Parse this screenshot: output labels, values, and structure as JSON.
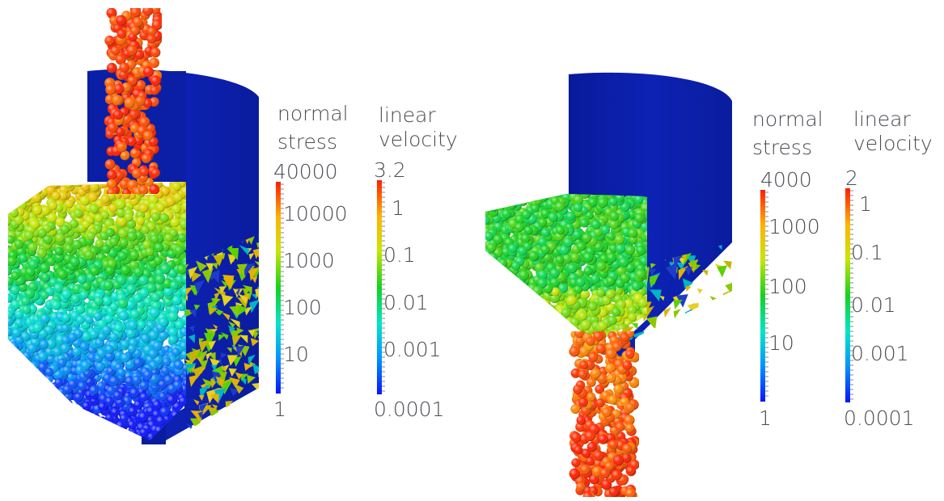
{
  "panels": [
    {
      "id": "left",
      "colorbars": [
        {
          "title_line1": "normal",
          "title_line2": "stress",
          "max_label": "40000",
          "min_label": "1",
          "ticks": [
            "10000",
            "1000",
            "100",
            "10"
          ]
        },
        {
          "title_line1": "linear",
          "title_line2": "velocity",
          "max_label": "3.2",
          "min_label": "0.0001",
          "ticks": [
            "1",
            "0.1",
            "0.01",
            "0.001"
          ]
        }
      ]
    },
    {
      "id": "right",
      "colorbars": [
        {
          "title_line1": "normal",
          "title_line2": "stress",
          "max_label": "4000",
          "min_label": "1",
          "ticks": [
            "1000",
            "100",
            "10"
          ]
        },
        {
          "title_line1": "linear",
          "title_line2": "velocity",
          "max_label": "2",
          "min_label": "0.0001",
          "ticks": [
            "1",
            "0.1",
            "0.01",
            "0.001"
          ]
        }
      ]
    }
  ],
  "colors": {
    "silo_wall": "#0b1fa6",
    "label_text": "#4a4a52",
    "colormap": [
      "#0a14ff",
      "#0096ff",
      "#00e6c8",
      "#14d21e",
      "#c8e600",
      "#ffb400",
      "#ff1e00"
    ]
  }
}
